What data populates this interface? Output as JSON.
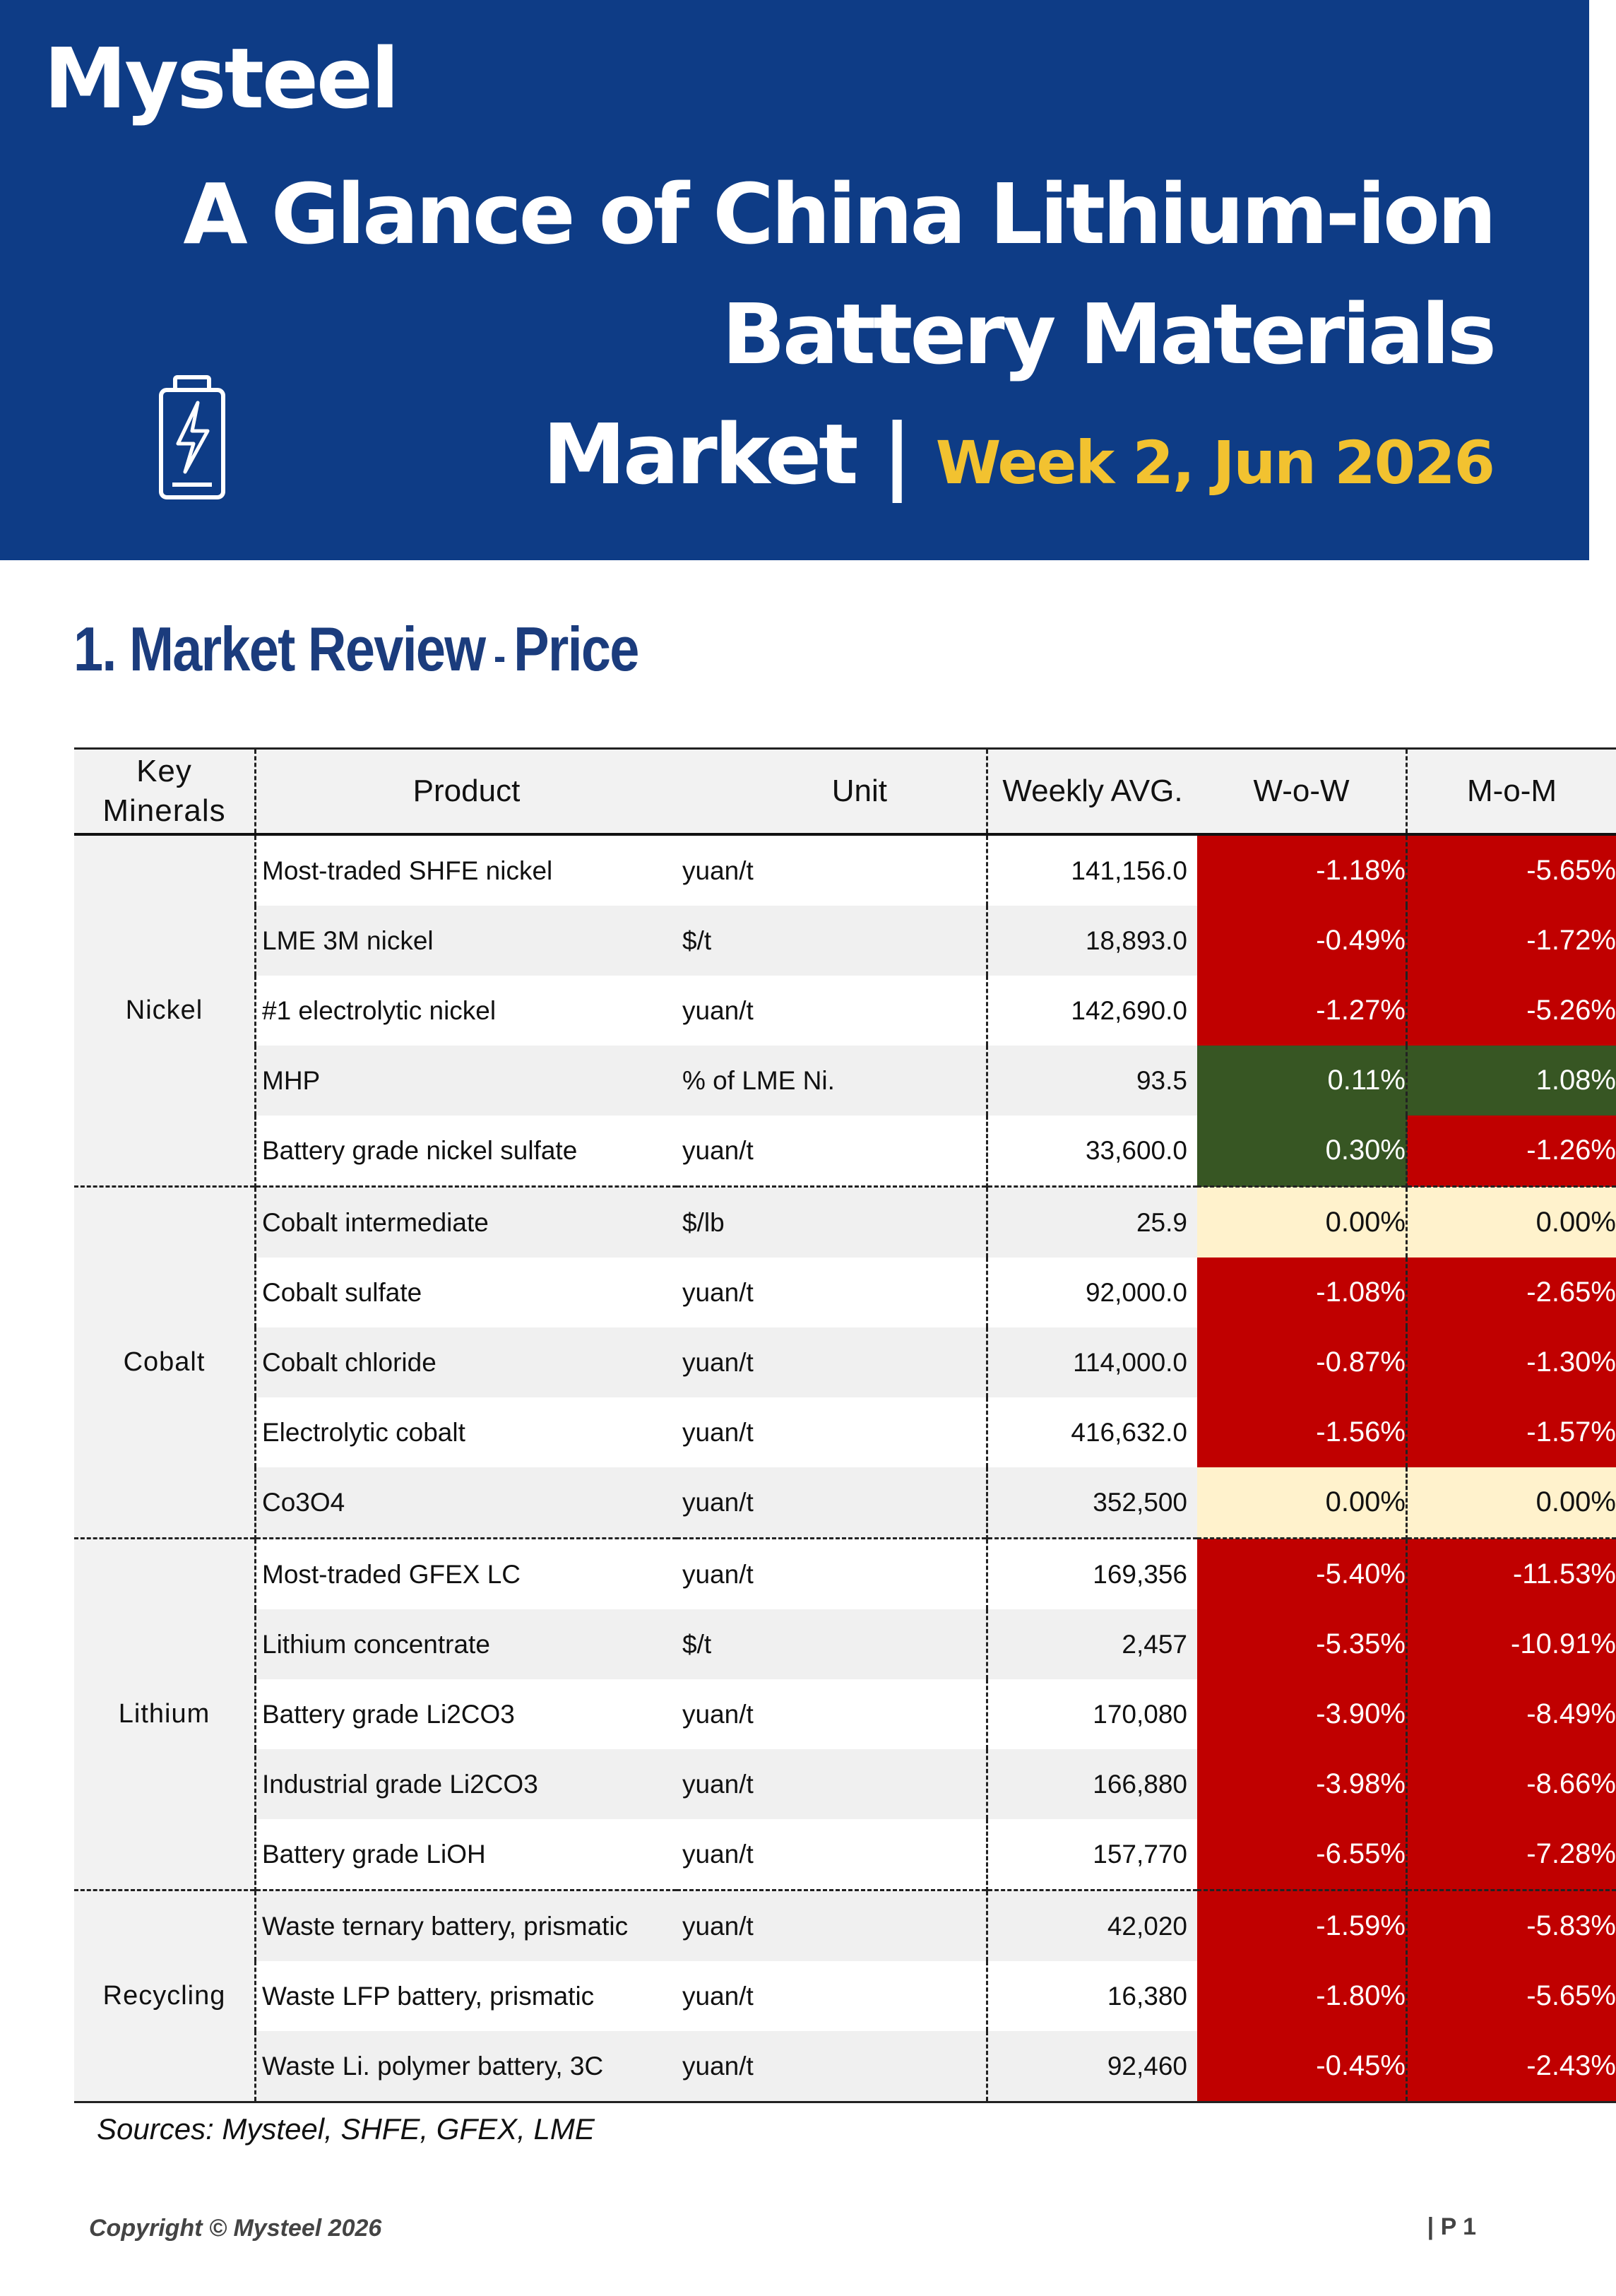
{
  "brand": {
    "logo_text": "Mysteel"
  },
  "header": {
    "title_line1": "A Glance of China Lithium-ion",
    "title_line2": "Battery Materials",
    "title_line3": "Market |",
    "week": "Week 2, Jun 2026",
    "icon": "battery-icon"
  },
  "section": {
    "number_title": "1. Market Review",
    "dash": " - ",
    "subtitle": "Price"
  },
  "table": {
    "headers": {
      "key_minerals": "Key Minerals",
      "product": "Product",
      "unit": "Unit",
      "weekly_avg": "Weekly AVG.",
      "wow": "W-o-W",
      "mom": "M-o-M"
    },
    "groups": [
      {
        "name": "Nickel",
        "rows": [
          {
            "product": "Most-traded SHFE nickel",
            "unit": "yuan/t",
            "avg": "141,156.0",
            "wow": "-1.18%",
            "mom": "-5.65%",
            "wow_status": "red",
            "mom_status": "red"
          },
          {
            "product": "LME 3M nickel",
            "unit": "$/t",
            "avg": "18,893.0",
            "wow": "-0.49%",
            "mom": "-1.72%",
            "wow_status": "red",
            "mom_status": "red"
          },
          {
            "product": "#1 electrolytic nickel",
            "unit": "yuan/t",
            "avg": "142,690.0",
            "wow": "-1.27%",
            "mom": "-5.26%",
            "wow_status": "red",
            "mom_status": "red"
          },
          {
            "product": "MHP",
            "unit": "% of LME Ni.",
            "avg": "93.5",
            "wow": "0.11%",
            "mom": "1.08%",
            "wow_status": "green",
            "mom_status": "green"
          },
          {
            "product": "Battery grade nickel sulfate",
            "unit": "yuan/t",
            "avg": "33,600.0",
            "wow": "0.30%",
            "mom": "-1.26%",
            "wow_status": "green",
            "mom_status": "red"
          }
        ]
      },
      {
        "name": "Cobalt",
        "rows": [
          {
            "product": "Cobalt intermediate",
            "unit": "$/lb",
            "avg": "25.9",
            "wow": "0.00%",
            "mom": "0.00%",
            "wow_status": "zero",
            "mom_status": "zero"
          },
          {
            "product": "Cobalt sulfate",
            "unit": "yuan/t",
            "avg": "92,000.0",
            "wow": "-1.08%",
            "mom": "-2.65%",
            "wow_status": "red",
            "mom_status": "red"
          },
          {
            "product": "Cobalt chloride",
            "unit": "yuan/t",
            "avg": "114,000.0",
            "wow": "-0.87%",
            "mom": "-1.30%",
            "wow_status": "red",
            "mom_status": "red"
          },
          {
            "product": "Electrolytic cobalt",
            "unit": "yuan/t",
            "avg": "416,632.0",
            "wow": "-1.56%",
            "mom": "-1.57%",
            "wow_status": "red",
            "mom_status": "red"
          },
          {
            "product": "Co3O4",
            "unit": "yuan/t",
            "avg": "352,500",
            "wow": "0.00%",
            "mom": "0.00%",
            "wow_status": "zero",
            "mom_status": "zero"
          }
        ]
      },
      {
        "name": "Lithium",
        "rows": [
          {
            "product": "Most-traded GFEX LC",
            "unit": "yuan/t",
            "avg": "169,356",
            "wow": "-5.40%",
            "mom": "-11.53%",
            "wow_status": "red",
            "mom_status": "red"
          },
          {
            "product": "Lithium concentrate",
            "unit": "$/t",
            "avg": "2,457",
            "wow": "-5.35%",
            "mom": "-10.91%",
            "wow_status": "red",
            "mom_status": "red"
          },
          {
            "product": "Battery grade Li2CO3",
            "unit": "yuan/t",
            "avg": "170,080",
            "wow": "-3.90%",
            "mom": "-8.49%",
            "wow_status": "red",
            "mom_status": "red"
          },
          {
            "product": "Industrial grade Li2CO3",
            "unit": "yuan/t",
            "avg": "166,880",
            "wow": "-3.98%",
            "mom": "-8.66%",
            "wow_status": "red",
            "mom_status": "red"
          },
          {
            "product": "Battery grade LiOH",
            "unit": "yuan/t",
            "avg": "157,770",
            "wow": "-6.55%",
            "mom": "-7.28%",
            "wow_status": "red",
            "mom_status": "red"
          }
        ]
      },
      {
        "name": "Recycling",
        "rows": [
          {
            "product": "Waste ternary battery, prismatic",
            "unit": "yuan/t",
            "avg": "42,020",
            "wow": "-1.59%",
            "mom": "-5.83%",
            "wow_status": "red",
            "mom_status": "red"
          },
          {
            "product": "Waste LFP battery, prismatic",
            "unit": "yuan/t",
            "avg": "16,380",
            "wow": "-1.80%",
            "mom": "-5.65%",
            "wow_status": "red",
            "mom_status": "red"
          },
          {
            "product": "Waste Li. polymer battery, 3C",
            "unit": "yuan/t",
            "avg": "92,460",
            "wow": "-0.45%",
            "mom": "-2.43%",
            "wow_status": "red",
            "mom_status": "red"
          }
        ]
      }
    ]
  },
  "sources": "Sources: Mysteel, SHFE, GFEX, LME",
  "footer": {
    "copyright": "Copyright © Mysteel 2026",
    "page": "| P 1"
  },
  "colors": {
    "banner": "#0e3c86",
    "accent_week": "#f2c230",
    "decline": "#c00000",
    "increase": "#375623",
    "flat": "#fff2cc",
    "section_title": "#1b3c7d"
  }
}
